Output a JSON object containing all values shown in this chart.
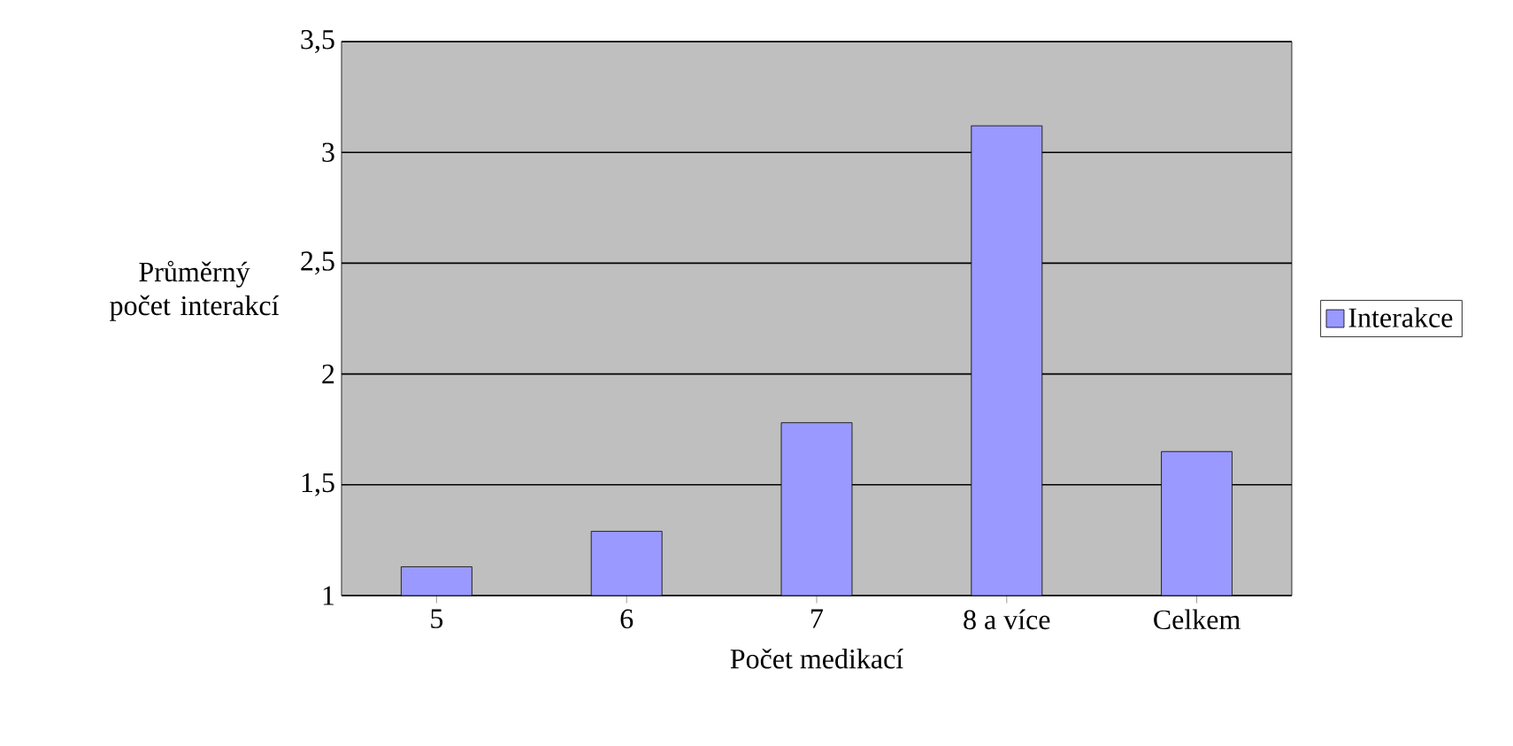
{
  "chart_data": {
    "type": "bar",
    "xlabel": "Počet medikací",
    "ylabel": "Průměrný počet interakcí",
    "categories": [
      "5",
      "6",
      "7",
      "8 a více",
      "Celkem"
    ],
    "series": [
      {
        "name": "Interakce",
        "color": "#9999ff",
        "values": [
          1.13,
          1.29,
          1.78,
          3.12,
          1.65
        ]
      }
    ],
    "ylim": [
      1,
      3.5
    ],
    "yticks": [
      1,
      {
        "value": 1.5,
        "label": "1,5"
      },
      2,
      {
        "value": 2.5,
        "label": "2,5"
      },
      3,
      {
        "value": 3.5,
        "label": "3,5"
      }
    ],
    "grid": "y",
    "legend": "right"
  }
}
